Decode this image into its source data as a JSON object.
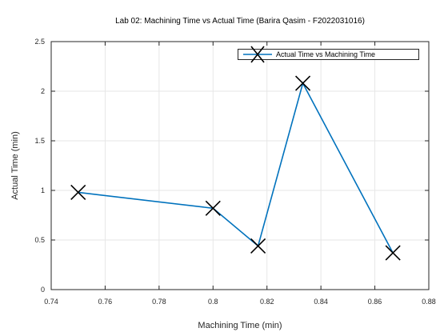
{
  "chart_data": {
    "type": "line",
    "title": "Lab 02: Machining Time vs Actual Time (Barira Qasim - F2022031016)",
    "xlabel": "Machining Time (min)",
    "ylabel": "Actual Time (min)",
    "xlim": [
      0.74,
      0.88
    ],
    "ylim": [
      0,
      2.5
    ],
    "x_ticks": [
      "0.74",
      "0.76",
      "0.78",
      "0.8",
      "0.82",
      "0.84",
      "0.86",
      "0.88"
    ],
    "y_ticks": [
      "0",
      "0.5",
      "1",
      "1.5",
      "2",
      "2.5"
    ],
    "grid": true,
    "legend_position": "top-right",
    "series": [
      {
        "name": "Actual Time vs Machining Time",
        "marker": "x",
        "color": "#0072BD",
        "x": [
          0.75,
          0.8,
          0.8167,
          0.8333,
          0.8667
        ],
        "y": [
          0.98,
          0.82,
          0.44,
          2.08,
          0.37
        ]
      }
    ]
  }
}
